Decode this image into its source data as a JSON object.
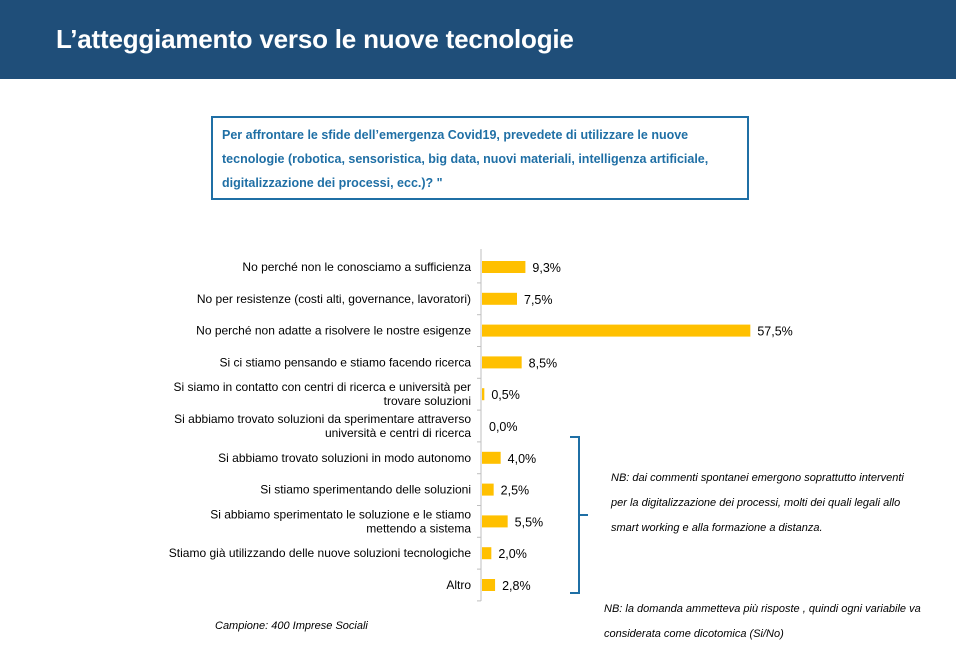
{
  "header": {
    "title": "L’atteggiamento verso le nuove tecnologie"
  },
  "question": "Per affrontare le sfide dell’emergenza Covid19, prevedete di utilizzare le nuove tecnologie (robotica, sensoristica, big data, nuovi materiali, intelligenza artificiale, digitalizzazione dei processi, ecc.)? \"",
  "chart_data": {
    "type": "bar",
    "orientation": "horizontal",
    "categories": [
      [
        "No perché non le conosciamo a sufficienza"
      ],
      [
        "No per resistenze (costi alti, governance, lavoratori)"
      ],
      [
        "No perché non adatte a risolvere le nostre esigenze"
      ],
      [
        "Si ci stiamo pensando e stiamo facendo ricerca"
      ],
      [
        "Si siamo in contatto con centri di ricerca e università per",
        "trovare soluzioni"
      ],
      [
        "Si abbiamo trovato soluzioni da sperimentare attraverso",
        "università e centri di ricerca"
      ],
      [
        "Si abbiamo trovato soluzioni in modo autonomo"
      ],
      [
        "Si stiamo sperimentando delle soluzioni"
      ],
      [
        "Si abbiamo sperimentato le soluzione e le stiamo",
        "mettendo a sistema"
      ],
      [
        "Stiamo già utilizzando delle nuove soluzioni tecnologiche"
      ],
      [
        "Altro"
      ]
    ],
    "values": [
      9.3,
      7.5,
      57.5,
      8.5,
      0.5,
      0.0,
      4.0,
      2.5,
      5.5,
      2.0,
      2.8
    ],
    "value_labels": [
      "9,3%",
      "7,5%",
      "57,5%",
      "8,5%",
      "0,5%",
      "0,0%",
      "4,0%",
      "2,5%",
      "5,5%",
      "2,0%",
      "2,8%"
    ],
    "bar_color": "#ffc000",
    "grid": false,
    "xlim": [
      0,
      60
    ]
  },
  "notes": {
    "comments": "NB: dai commenti spontanei emergono soprattutto interventi per la digitalizzazione dei processi, molti dei quali legali allo smart working e alla formazione a distanza.",
    "multiple_answers": "NB: la domanda ammetteva più risposte , quindi ogni variabile va considerata come dicotomica (Si/No)",
    "sample": "Campione: 400 Imprese Sociali"
  }
}
